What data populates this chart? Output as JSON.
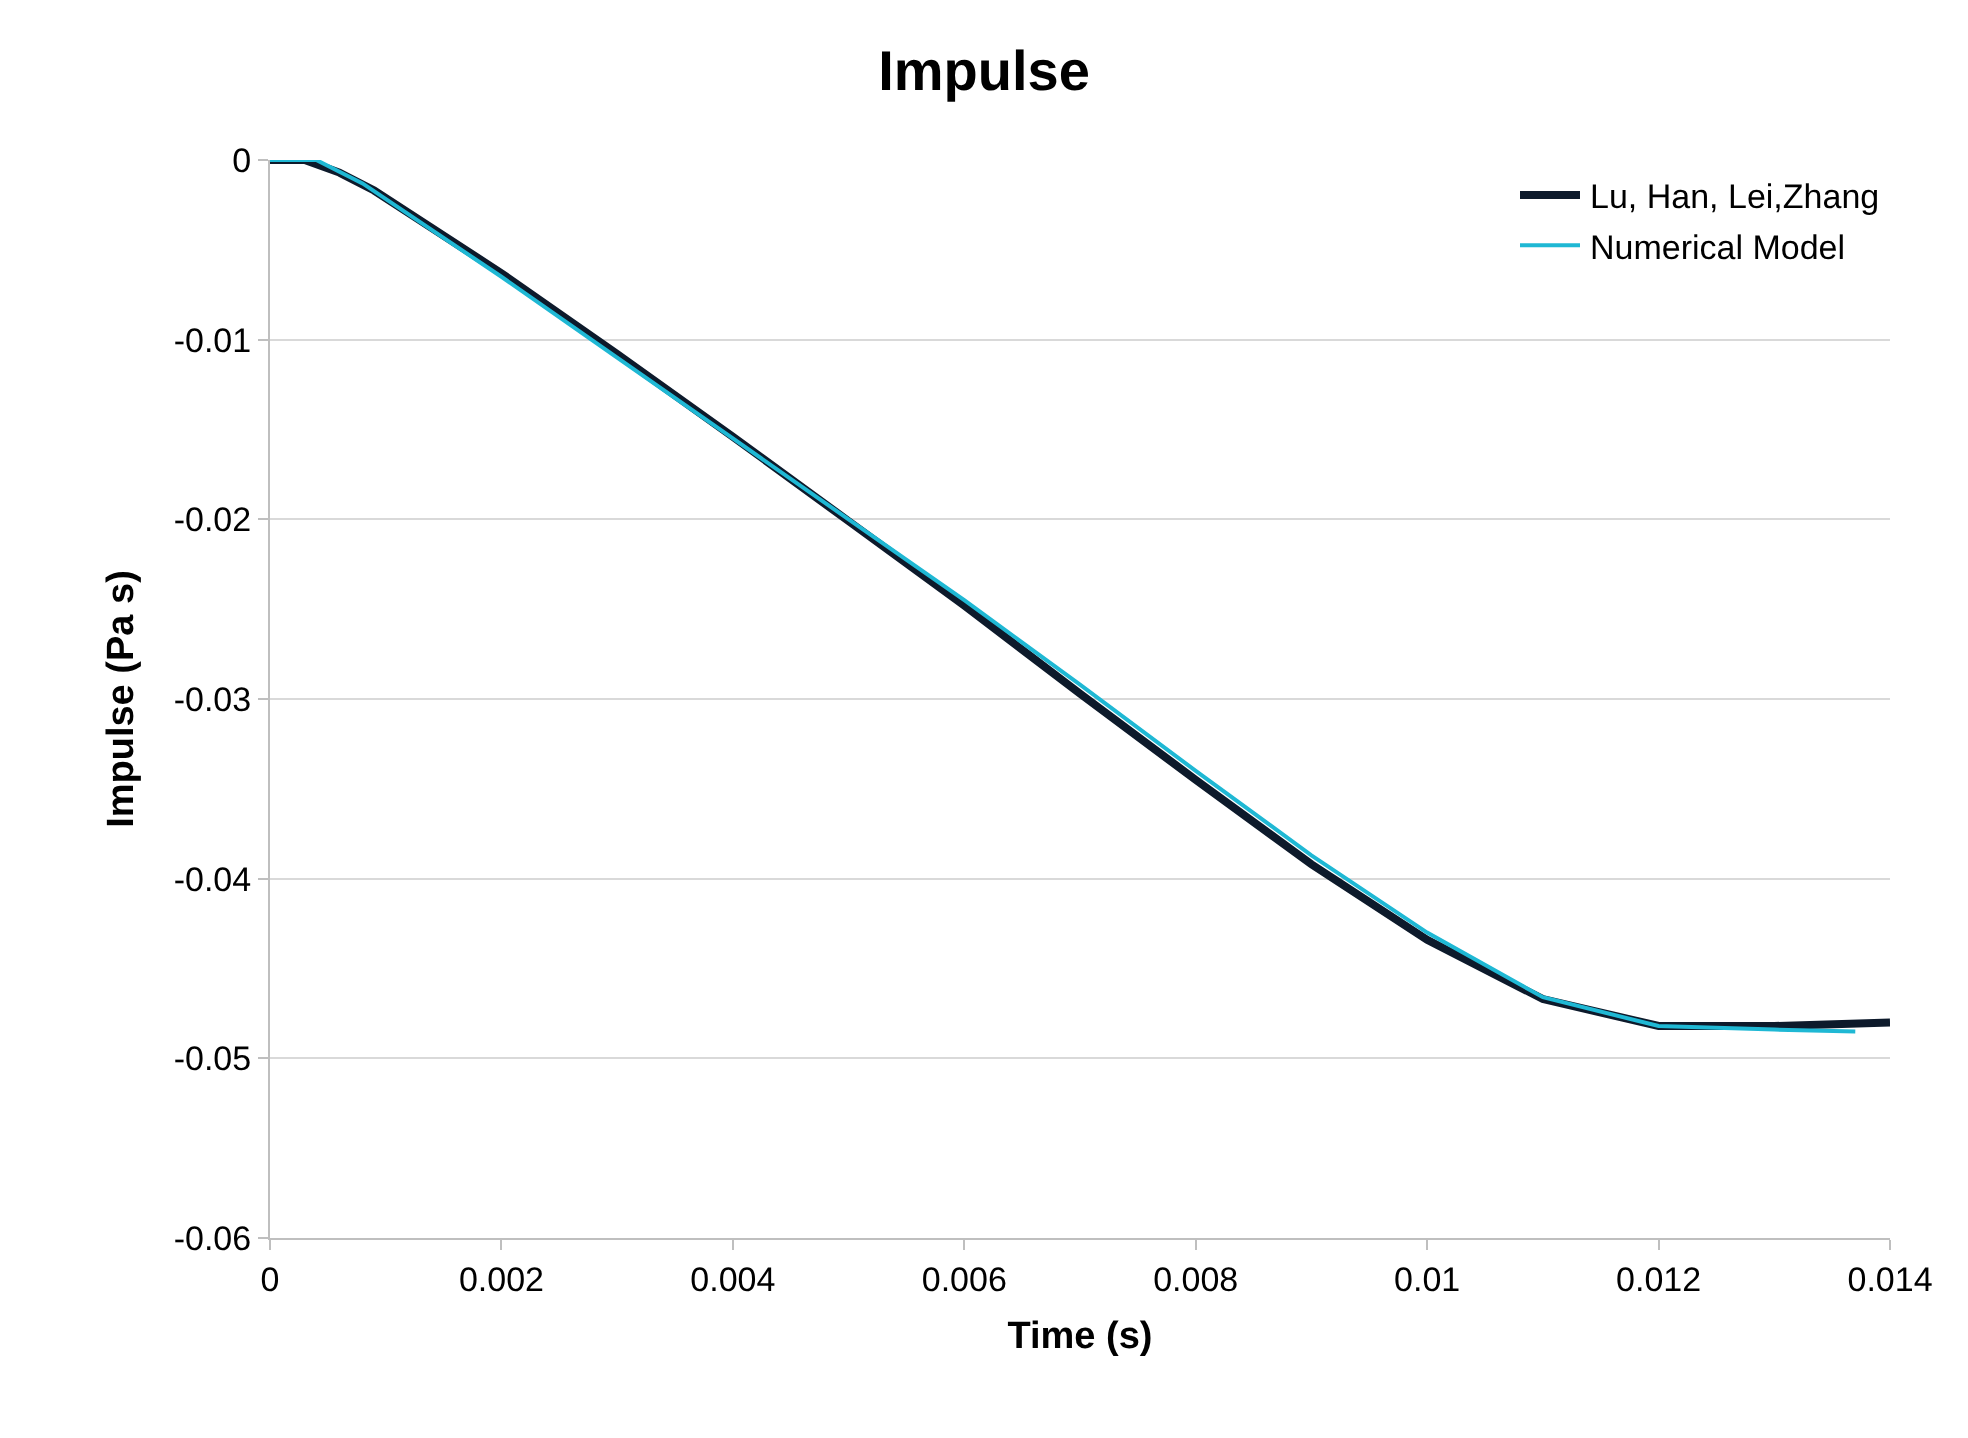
{
  "chart_data": {
    "type": "line",
    "title": "Impulse",
    "xlabel": "Time (s)",
    "ylabel": "Impulse (Pa s)",
    "xlim": [
      0,
      0.014
    ],
    "xticks": [
      0,
      0.002,
      0.004,
      0.006,
      0.008,
      0.01,
      0.012,
      0.014
    ],
    "ylim": [
      -0.06,
      0
    ],
    "yticks": [
      -0.06,
      -0.05,
      -0.04,
      -0.03,
      -0.02,
      -0.01,
      0
    ],
    "grid": "y",
    "legend": "top right",
    "marker": "none",
    "line_style": "solid",
    "series": [
      {
        "name": "Lu, Han, Lei,Zhang",
        "color": "#0d1a2b",
        "x": [
          0,
          0.0003,
          0.0006,
          0.0009,
          0.002,
          0.003,
          0.004,
          0.005,
          0.006,
          0.007,
          0.008,
          0.009,
          0.01,
          0.011,
          0.012,
          0.013,
          0.014
        ],
        "values": [
          0,
          0,
          -0.0007,
          -0.0017,
          -0.0063,
          -0.0108,
          -0.0154,
          -0.0201,
          -0.0248,
          -0.0297,
          -0.0345,
          -0.0392,
          -0.0434,
          -0.0467,
          -0.0482,
          -0.0482,
          -0.048
        ]
      },
      {
        "name": "Numerical Model",
        "color": "#1fb8d4",
        "x": [
          0,
          0.0004,
          0.0008,
          0.002,
          0.003,
          0.004,
          0.005,
          0.006,
          0.007,
          0.008,
          0.009,
          0.01,
          0.011,
          0.012,
          0.013,
          0.0137
        ],
        "values": [
          0,
          0,
          -0.0013,
          -0.0065,
          -0.011,
          -0.0155,
          -0.02,
          -0.0245,
          -0.0292,
          -0.034,
          -0.0387,
          -0.043,
          -0.0466,
          -0.0482,
          -0.0484,
          -0.0485
        ]
      }
    ]
  }
}
